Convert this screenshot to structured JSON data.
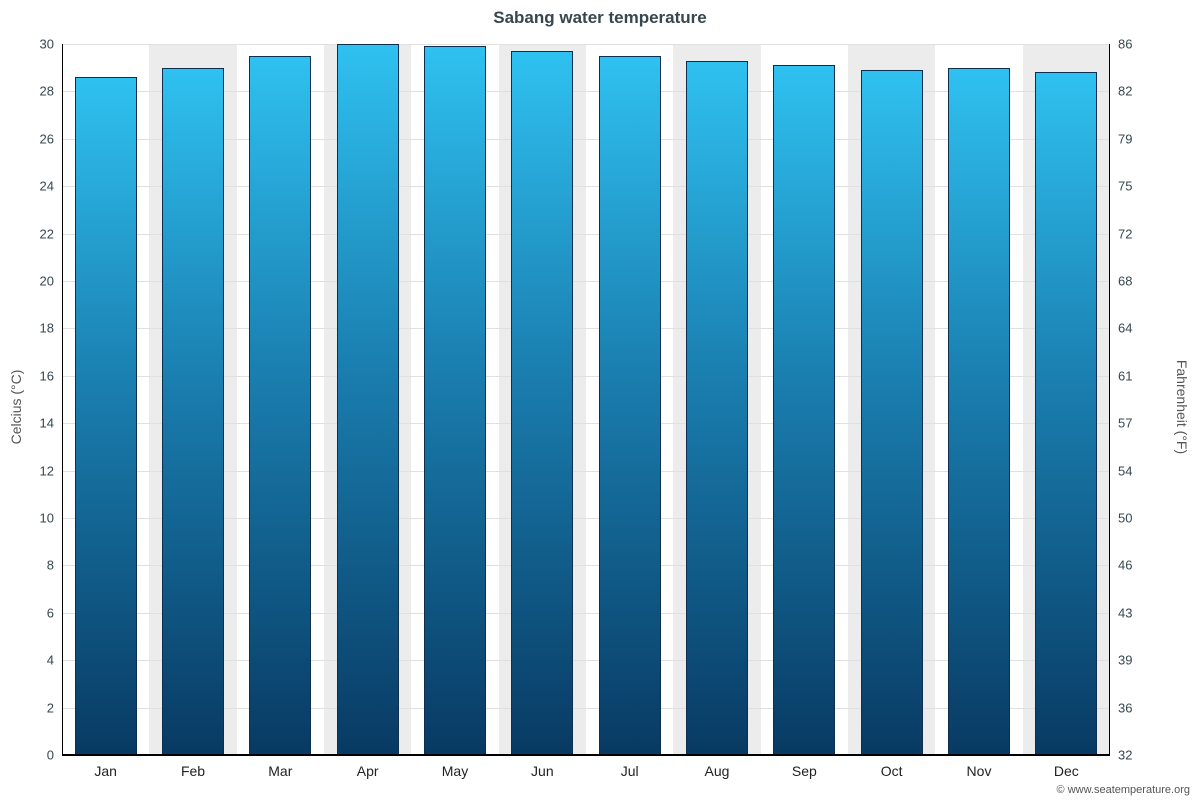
{
  "chart_data": {
    "type": "bar",
    "title": "Sabang water temperature",
    "categories": [
      "Jan",
      "Feb",
      "Mar",
      "Apr",
      "May",
      "Jun",
      "Jul",
      "Aug",
      "Sep",
      "Oct",
      "Nov",
      "Dec"
    ],
    "values": [
      28.6,
      29.0,
      29.5,
      30.0,
      29.9,
      29.7,
      29.5,
      29.3,
      29.1,
      28.9,
      29.0,
      28.8
    ],
    "ylabel_left": "Celcius (°C)",
    "ylabel_right": "Fahrenheit (°F)",
    "ylim": [
      0,
      30
    ],
    "ytick_step_celsius": 2,
    "yticks_celsius": [
      0,
      2,
      4,
      6,
      8,
      10,
      12,
      14,
      16,
      18,
      20,
      22,
      24,
      26,
      28,
      30
    ],
    "yticks_fahrenheit_labels": [
      "32",
      "36",
      "39",
      "43",
      "46",
      "50",
      "54",
      "57",
      "61",
      "64",
      "68",
      "72",
      "75",
      "79",
      "82",
      "86"
    ],
    "grid": true,
    "legend": "none",
    "colors": {
      "bar_top": "#2fc1f0",
      "bar_bottom": "#083a63",
      "bar_border": "#0c2f50",
      "band_alt": "#ececec",
      "gridline": "#e0e0e0",
      "axis": "#000000",
      "title_text": "#37474f",
      "tick_text": "#37474f"
    }
  },
  "footer": {
    "text": "© www.seatemperature.org"
  }
}
